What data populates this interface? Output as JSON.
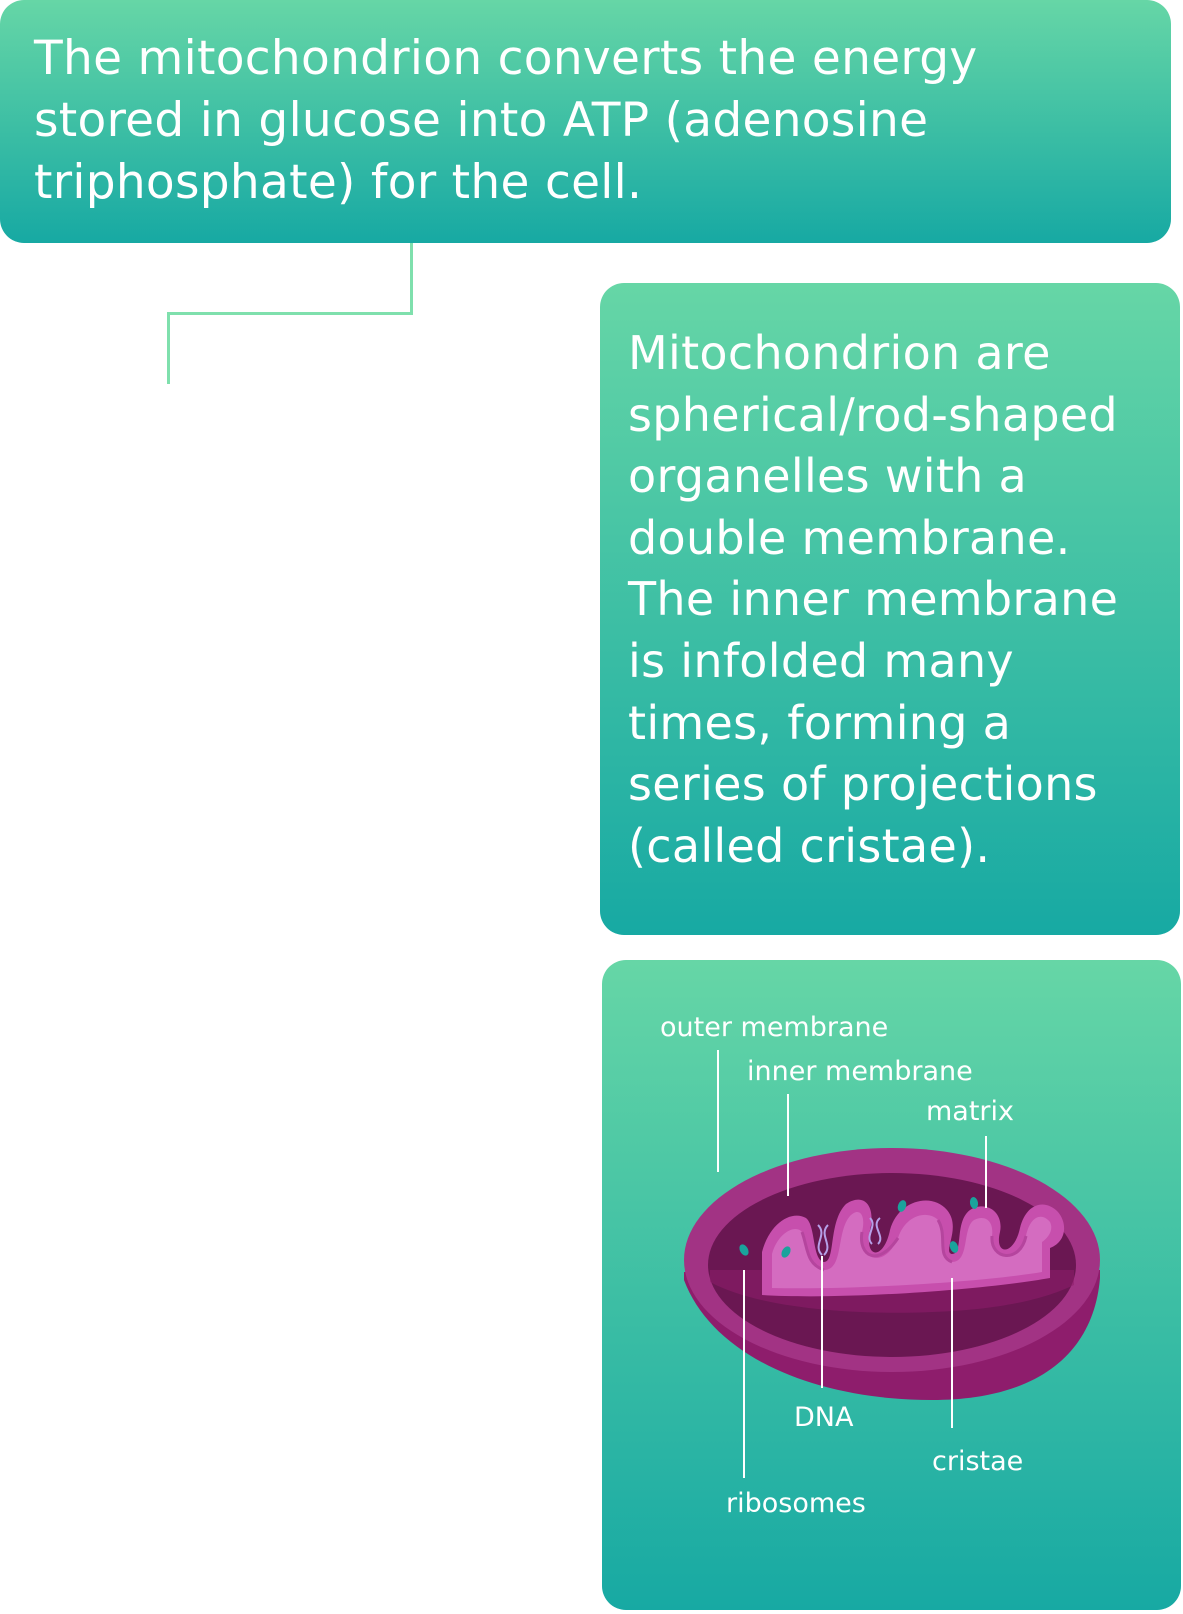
{
  "top_card": {
    "text": "The mitochondrion converts the energy stored in glucose into ATP (adenosine triphosphate) for the cell."
  },
  "mid_card": {
    "text": "Mitochondrion are spherical/rod-shaped organelles with a double membrane. The inner membrane is infolded many times, forming a series of projections (called cristae)."
  },
  "diagram": {
    "labels": {
      "outer_membrane": "outer membrane",
      "inner_membrane": "inner membrane",
      "matrix": "matrix",
      "dna": "DNA",
      "cristae": "cristae",
      "ribosomes": "ribosomes"
    },
    "colors": {
      "outer_body": "#8e1d6c",
      "outer_rim": "#a23384",
      "intermembrane": "#6a1752",
      "inner_membrane": "#c74fad",
      "matrix": "#d46cc0",
      "ribosome": "#1aa39c",
      "dna": "#b6a0e8",
      "card_top": "#66d6a6",
      "card_bottom": "#17a9a3",
      "connector": "#7fe0ad"
    }
  }
}
